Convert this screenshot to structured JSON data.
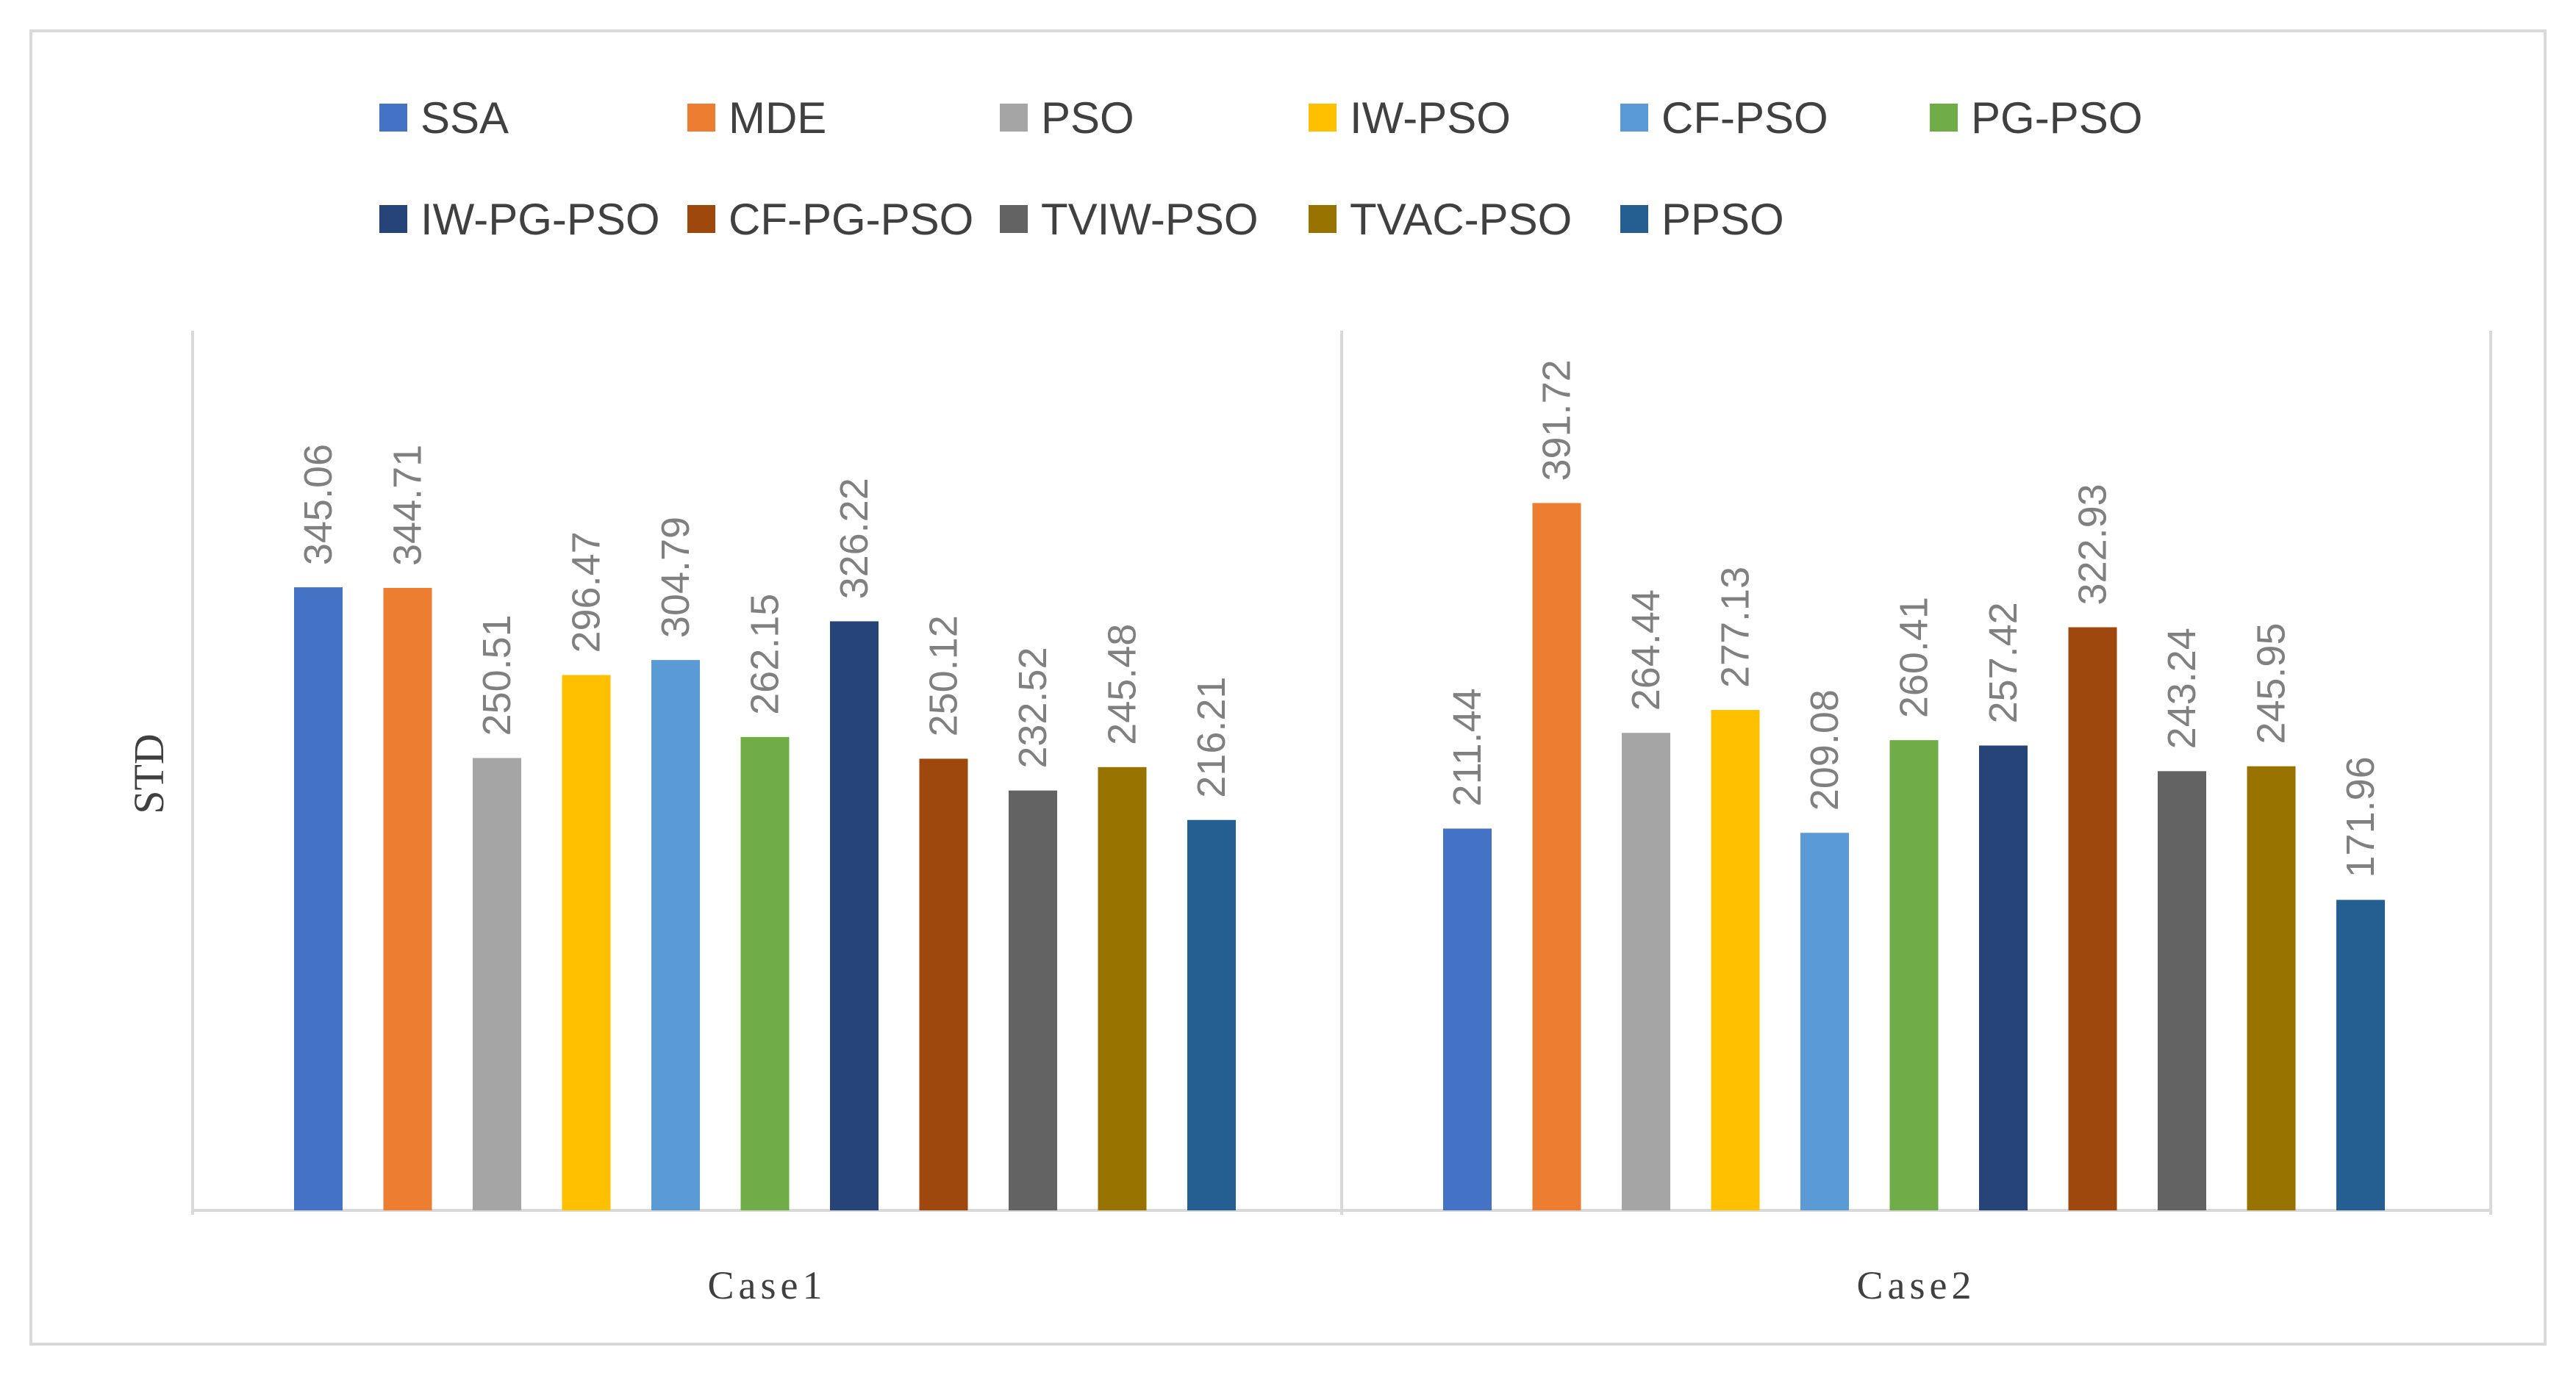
{
  "chart_data": {
    "type": "bar",
    "title": "",
    "xlabel": "",
    "ylabel": "STD",
    "ylim": [
      0,
      420
    ],
    "grid": false,
    "legend_position": "top",
    "categories": [
      "Case1",
      "Case2"
    ],
    "series": [
      {
        "name": "SSA",
        "color": "#4472C4",
        "values": [
          345.06,
          211.44
        ]
      },
      {
        "name": "MDE",
        "color": "#ED7D31",
        "values": [
          344.71,
          391.72
        ]
      },
      {
        "name": "PSO",
        "color": "#A5A5A5",
        "values": [
          250.51,
          264.44
        ]
      },
      {
        "name": "IW-PSO",
        "color": "#FFC000",
        "values": [
          296.47,
          277.13
        ]
      },
      {
        "name": "CF-PSO",
        "color": "#5B9BD5",
        "values": [
          304.79,
          209.08
        ]
      },
      {
        "name": "PG-PSO",
        "color": "#70AD47",
        "values": [
          262.15,
          260.41
        ]
      },
      {
        "name": "IW-PG-PSO",
        "color": "#264478",
        "values": [
          326.22,
          257.42
        ]
      },
      {
        "name": "CF-PG-PSO",
        "color": "#9E480E",
        "values": [
          250.12,
          322.93
        ]
      },
      {
        "name": "TVIW-PSO",
        "color": "#636363",
        "values": [
          232.52,
          243.24
        ]
      },
      {
        "name": "TVAC-PSO",
        "color": "#997300",
        "values": [
          245.48,
          245.95
        ]
      },
      {
        "name": "PPSO",
        "color": "#255E91",
        "values": [
          216.21,
          171.96
        ]
      }
    ]
  }
}
